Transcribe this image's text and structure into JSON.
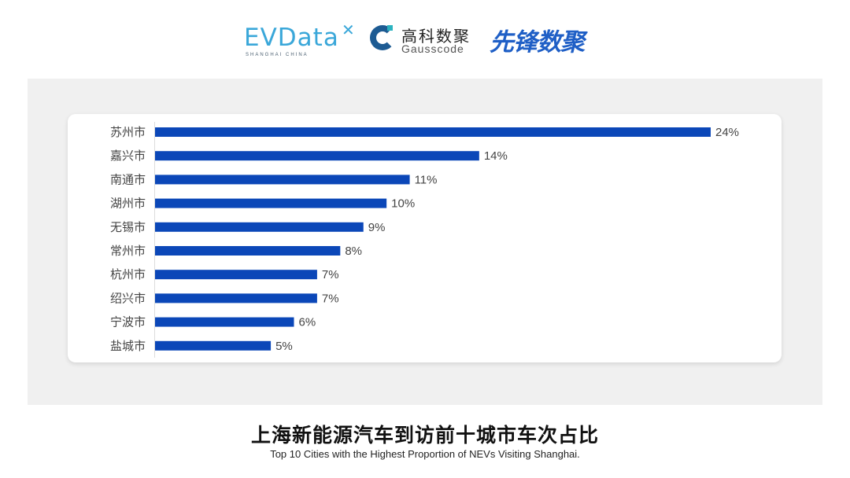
{
  "logos": {
    "evdata": {
      "text": "EVData",
      "tagline": "SHANGHAI CHINA"
    },
    "gausscode": {
      "cn": "高科数聚",
      "en": "Gausscode"
    },
    "xianfeng": {
      "cn": "先锋数聚"
    }
  },
  "colors": {
    "bar": "#0b47b8",
    "panel": "#f0f0f0"
  },
  "chart_data": {
    "type": "bar",
    "orientation": "horizontal",
    "title": "上海新能源汽车到访前十城市车次占比",
    "subtitle": "Top 10 Cities with the Highest Proportion of  NEVs Visiting Shanghai.",
    "categories": [
      "苏州市",
      "嘉兴市",
      "南通市",
      "湖州市",
      "无锡市",
      "常州市",
      "杭州市",
      "绍兴市",
      "宁波市",
      "盐城市"
    ],
    "values": [
      24,
      14,
      11,
      10,
      9,
      8,
      7,
      7,
      6,
      5
    ],
    "data_labels": [
      "24%",
      "14%",
      "11%",
      "10%",
      "9%",
      "8%",
      "7%",
      "7%",
      "6%",
      "5%"
    ],
    "unit": "%",
    "grid": false,
    "legend": "none"
  }
}
